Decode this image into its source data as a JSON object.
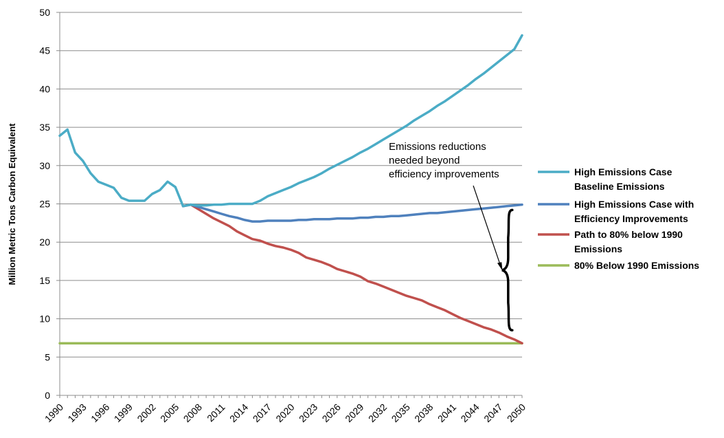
{
  "chart_data": {
    "type": "line",
    "ylabel": "Million Metric Tons Carbon Equivalent",
    "xlabel": "",
    "ylim": [
      0,
      50
    ],
    "yticks": [
      0,
      5,
      10,
      15,
      20,
      25,
      30,
      35,
      40,
      45,
      50
    ],
    "xlim": [
      1990,
      2050
    ],
    "xtick_labels": [
      "1990",
      "1993",
      "1996",
      "1999",
      "2002",
      "2005",
      "2008",
      "2011",
      "2014",
      "2017",
      "2020",
      "2023",
      "2026",
      "2029",
      "2032",
      "2035",
      "2038",
      "2041",
      "2044",
      "2047",
      "2050"
    ],
    "grid": "horizontal",
    "legend_position": "right",
    "annotation": [
      "Emissions reductions",
      "needed beyond",
      "efficiency improvements"
    ],
    "series": [
      {
        "name": [
          "High Emissions Case",
          "Baseline Emissions"
        ],
        "color": "#4bacc6",
        "x": [
          1990,
          1991,
          1992,
          1993,
          1994,
          1995,
          1996,
          1997,
          1998,
          1999,
          2000,
          2001,
          2002,
          2003,
          2004,
          2005,
          2006,
          2007,
          2008,
          2009,
          2010,
          2011,
          2012,
          2013,
          2014,
          2015,
          2016,
          2017,
          2018,
          2019,
          2020,
          2021,
          2022,
          2023,
          2024,
          2025,
          2026,
          2027,
          2028,
          2029,
          2030,
          2031,
          2032,
          2033,
          2034,
          2035,
          2036,
          2037,
          2038,
          2039,
          2040,
          2041,
          2042,
          2043,
          2044,
          2045,
          2046,
          2047,
          2048,
          2049,
          2050
        ],
        "y": [
          33.9,
          34.7,
          31.7,
          30.6,
          29.0,
          27.9,
          27.5,
          27.1,
          25.8,
          25.4,
          25.4,
          25.4,
          26.3,
          26.8,
          27.9,
          27.2,
          24.7,
          24.9,
          24.8,
          24.8,
          24.9,
          24.9,
          25.0,
          25.0,
          25.0,
          25.0,
          25.4,
          26.0,
          26.4,
          26.8,
          27.2,
          27.7,
          28.1,
          28.5,
          29.0,
          29.6,
          30.1,
          30.6,
          31.1,
          31.7,
          32.2,
          32.8,
          33.4,
          34.0,
          34.6,
          35.2,
          35.9,
          36.5,
          37.1,
          37.8,
          38.4,
          39.1,
          39.8,
          40.5,
          41.3,
          42.0,
          42.8,
          43.6,
          44.4,
          45.2,
          47.0
        ]
      },
      {
        "name": [
          "High Emissions Case with",
          "Efficiency Improvements"
        ],
        "color": "#4f81bd",
        "x": [
          2006,
          2007,
          2008,
          2009,
          2010,
          2011,
          2012,
          2013,
          2014,
          2015,
          2016,
          2017,
          2018,
          2019,
          2020,
          2021,
          2022,
          2023,
          2024,
          2025,
          2026,
          2027,
          2028,
          2029,
          2030,
          2031,
          2032,
          2033,
          2034,
          2035,
          2036,
          2037,
          2038,
          2039,
          2040,
          2041,
          2042,
          2043,
          2044,
          2045,
          2046,
          2047,
          2048,
          2049,
          2050
        ],
        "y": [
          24.7,
          24.9,
          24.6,
          24.3,
          24.0,
          23.7,
          23.4,
          23.2,
          22.9,
          22.7,
          22.7,
          22.8,
          22.8,
          22.8,
          22.8,
          22.9,
          22.9,
          23.0,
          23.0,
          23.0,
          23.1,
          23.1,
          23.1,
          23.2,
          23.2,
          23.3,
          23.3,
          23.4,
          23.4,
          23.5,
          23.6,
          23.7,
          23.8,
          23.8,
          23.9,
          24.0,
          24.1,
          24.2,
          24.3,
          24.4,
          24.5,
          24.6,
          24.7,
          24.8,
          24.9
        ]
      },
      {
        "name": [
          "Path to 80% below 1990",
          "Emissions"
        ],
        "color": "#c0504d",
        "x": [
          2006,
          2007,
          2008,
          2009,
          2010,
          2011,
          2012,
          2013,
          2014,
          2015,
          2016,
          2017,
          2018,
          2019,
          2020,
          2021,
          2022,
          2023,
          2024,
          2025,
          2026,
          2027,
          2028,
          2029,
          2030,
          2031,
          2032,
          2033,
          2034,
          2035,
          2036,
          2037,
          2038,
          2039,
          2040,
          2041,
          2042,
          2043,
          2044,
          2045,
          2046,
          2047,
          2048,
          2049,
          2050
        ],
        "y": [
          24.7,
          24.9,
          24.3,
          23.7,
          23.1,
          22.6,
          22.1,
          21.4,
          20.9,
          20.4,
          20.2,
          19.8,
          19.5,
          19.3,
          19.0,
          18.6,
          18.0,
          17.7,
          17.4,
          17.0,
          16.5,
          16.2,
          15.9,
          15.5,
          14.9,
          14.6,
          14.2,
          13.8,
          13.4,
          13.0,
          12.7,
          12.4,
          11.9,
          11.5,
          11.1,
          10.6,
          10.1,
          9.7,
          9.3,
          8.9,
          8.6,
          8.2,
          7.7,
          7.3,
          6.8
        ]
      },
      {
        "name": [
          "80% Below 1990 Emissions"
        ],
        "color": "#9bbb59",
        "x": [
          1990,
          2050
        ],
        "y": [
          6.8,
          6.8
        ]
      }
    ]
  }
}
